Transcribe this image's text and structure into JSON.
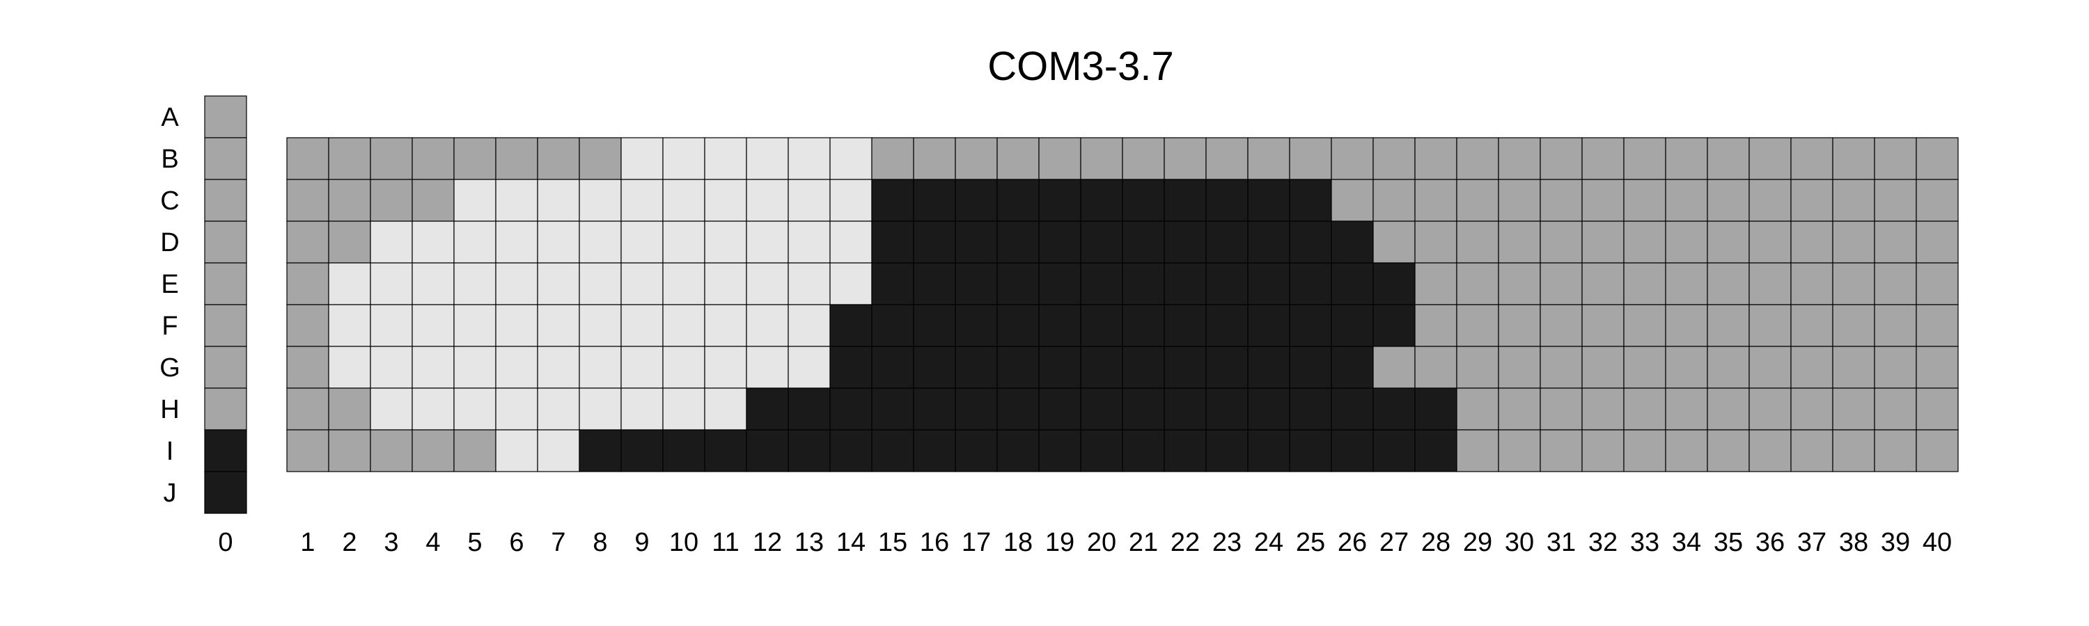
{
  "chart_data": {
    "type": "heatmap",
    "title": "COM3-3.7",
    "row_labels": [
      "A",
      "B",
      "C",
      "D",
      "E",
      "F",
      "G",
      "H",
      "I",
      "J"
    ],
    "column_zero_label": "0",
    "column_labels": [
      "1",
      "2",
      "3",
      "4",
      "5",
      "6",
      "7",
      "8",
      "9",
      "10",
      "11",
      "12",
      "13",
      "14",
      "15",
      "16",
      "17",
      "18",
      "19",
      "20",
      "21",
      "22",
      "23",
      "24",
      "25",
      "26",
      "27",
      "28",
      "29",
      "30",
      "31",
      "32",
      "33",
      "34",
      "35",
      "36",
      "37",
      "38",
      "39",
      "40"
    ],
    "state_colors": {
      "0": "#e6e6e6",
      "1": "#a6a6a6",
      "2": "#1a1a1a"
    },
    "column_zero": [
      1,
      1,
      1,
      1,
      1,
      1,
      1,
      1,
      2,
      2
    ],
    "grid_rows": [
      "B",
      "C",
      "D",
      "E",
      "F",
      "G",
      "H",
      "I"
    ],
    "grid": [
      [
        1,
        1,
        1,
        1,
        1,
        1,
        1,
        1,
        0,
        0,
        0,
        0,
        0,
        0,
        1,
        1,
        1,
        1,
        1,
        1,
        1,
        1,
        1,
        1,
        1,
        1,
        1,
        1,
        1,
        1,
        1,
        1,
        1,
        1,
        1,
        1,
        1,
        1,
        1,
        1
      ],
      [
        1,
        1,
        1,
        1,
        0,
        0,
        0,
        0,
        0,
        0,
        0,
        0,
        0,
        0,
        2,
        2,
        2,
        2,
        2,
        2,
        2,
        2,
        2,
        2,
        2,
        1,
        1,
        1,
        1,
        1,
        1,
        1,
        1,
        1,
        1,
        1,
        1,
        1,
        1,
        1
      ],
      [
        1,
        1,
        0,
        0,
        0,
        0,
        0,
        0,
        0,
        0,
        0,
        0,
        0,
        0,
        2,
        2,
        2,
        2,
        2,
        2,
        2,
        2,
        2,
        2,
        2,
        2,
        1,
        1,
        1,
        1,
        1,
        1,
        1,
        1,
        1,
        1,
        1,
        1,
        1,
        1
      ],
      [
        1,
        0,
        0,
        0,
        0,
        0,
        0,
        0,
        0,
        0,
        0,
        0,
        0,
        0,
        2,
        2,
        2,
        2,
        2,
        2,
        2,
        2,
        2,
        2,
        2,
        2,
        2,
        1,
        1,
        1,
        1,
        1,
        1,
        1,
        1,
        1,
        1,
        1,
        1,
        1
      ],
      [
        1,
        0,
        0,
        0,
        0,
        0,
        0,
        0,
        0,
        0,
        0,
        0,
        0,
        2,
        2,
        2,
        2,
        2,
        2,
        2,
        2,
        2,
        2,
        2,
        2,
        2,
        2,
        1,
        1,
        1,
        1,
        1,
        1,
        1,
        1,
        1,
        1,
        1,
        1,
        1
      ],
      [
        1,
        0,
        0,
        0,
        0,
        0,
        0,
        0,
        0,
        0,
        0,
        0,
        0,
        2,
        2,
        2,
        2,
        2,
        2,
        2,
        2,
        2,
        2,
        2,
        2,
        2,
        1,
        1,
        1,
        1,
        1,
        1,
        1,
        1,
        1,
        1,
        1,
        1,
        1,
        1
      ],
      [
        1,
        1,
        0,
        0,
        0,
        0,
        0,
        0,
        0,
        0,
        0,
        2,
        2,
        2,
        2,
        2,
        2,
        2,
        2,
        2,
        2,
        2,
        2,
        2,
        2,
        2,
        2,
        2,
        1,
        1,
        1,
        1,
        1,
        1,
        1,
        1,
        1,
        1,
        1,
        1
      ],
      [
        1,
        1,
        1,
        1,
        1,
        0,
        0,
        2,
        2,
        2,
        2,
        2,
        2,
        2,
        2,
        2,
        2,
        2,
        2,
        2,
        2,
        2,
        2,
        2,
        2,
        2,
        2,
        2,
        1,
        1,
        1,
        1,
        1,
        1,
        1,
        1,
        1,
        1,
        1,
        1
      ]
    ]
  }
}
